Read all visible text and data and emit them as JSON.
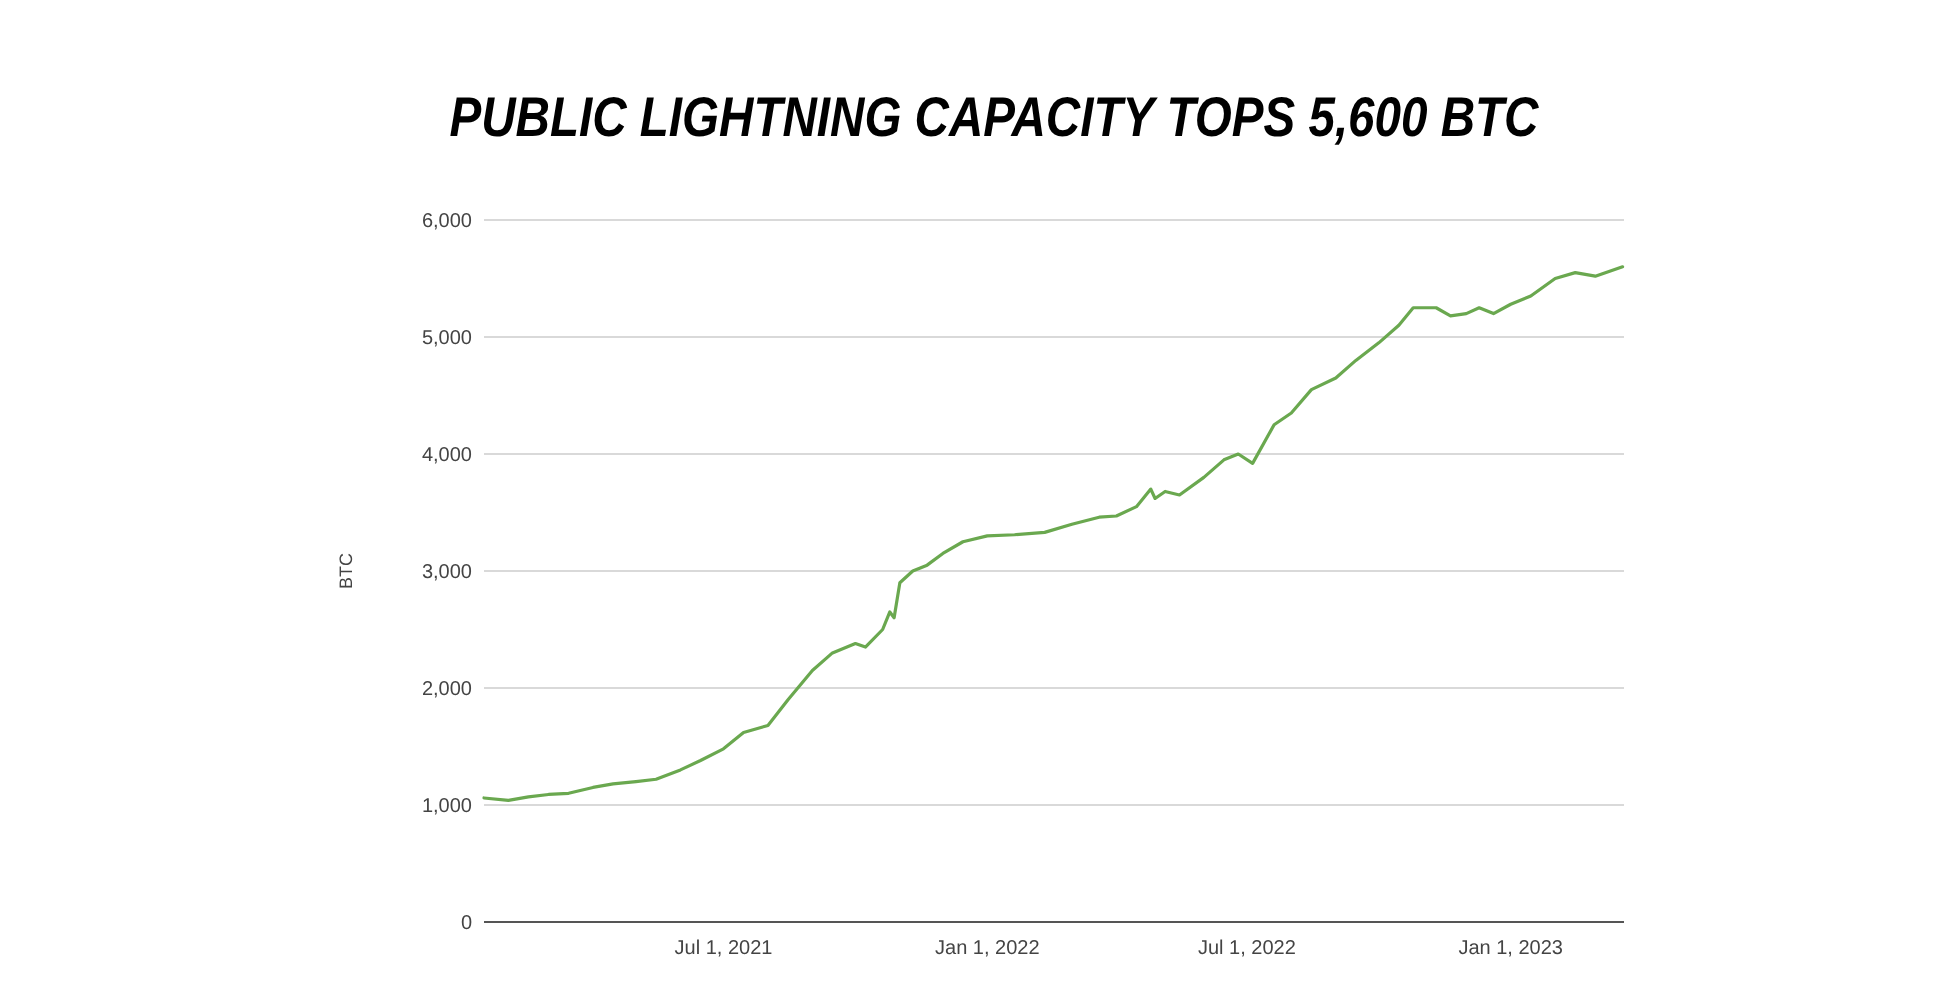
{
  "chart_data": {
    "type": "line",
    "title": "PUBLIC LIGHTNING CAPACITY TOPS 5,600 BTC",
    "ylabel": "BTC",
    "x": [
      "2021-01-15",
      "2021-02-01",
      "2021-02-15",
      "2021-03-01",
      "2021-03-15",
      "2021-04-01",
      "2021-04-15",
      "2021-05-01",
      "2021-05-15",
      "2021-06-01",
      "2021-06-15",
      "2021-07-01",
      "2021-07-15",
      "2021-08-01",
      "2021-08-15",
      "2021-09-01",
      "2021-09-15",
      "2021-10-01",
      "2021-10-08",
      "2021-10-20",
      "2021-10-25",
      "2021-10-28",
      "2021-11-01",
      "2021-11-10",
      "2021-11-20",
      "2021-12-01",
      "2021-12-15",
      "2022-01-01",
      "2022-01-20",
      "2022-02-10",
      "2022-03-01",
      "2022-03-20",
      "2022-04-01",
      "2022-04-15",
      "2022-04-25",
      "2022-04-28",
      "2022-05-05",
      "2022-05-15",
      "2022-06-01",
      "2022-06-15",
      "2022-06-25",
      "2022-07-05",
      "2022-07-20",
      "2022-08-01",
      "2022-08-15",
      "2022-09-01",
      "2022-09-15",
      "2022-10-01",
      "2022-10-15",
      "2022-10-25",
      "2022-11-10",
      "2022-11-20",
      "2022-12-01",
      "2022-12-10",
      "2022-12-20",
      "2023-01-01",
      "2023-01-15",
      "2023-02-01",
      "2023-02-15",
      "2023-03-01",
      "2023-03-20"
    ],
    "series": [
      {
        "color": "#6aa84f",
        "values": [
          1060,
          1040,
          1070,
          1090,
          1100,
          1150,
          1180,
          1200,
          1220,
          1300,
          1380,
          1480,
          1620,
          1680,
          1900,
          2150,
          2300,
          2380,
          2350,
          2500,
          2650,
          2600,
          2900,
          3000,
          3050,
          3150,
          3250,
          3300,
          3310,
          3330,
          3400,
          3460,
          3470,
          3550,
          3700,
          3620,
          3680,
          3650,
          3800,
          3950,
          4000,
          3920,
          4250,
          4350,
          4550,
          4650,
          4800,
          4950,
          5100,
          5250,
          5250,
          5180,
          5200,
          5250,
          5200,
          5280,
          5350,
          5500,
          5550,
          5520,
          5600
        ]
      }
    ],
    "xlim": [
      "2021-01-15",
      "2023-03-21"
    ],
    "xticks": [
      {
        "value": "2021-07-01",
        "label": "Jul 1, 2021"
      },
      {
        "value": "2022-01-01",
        "label": "Jan 1, 2022"
      },
      {
        "value": "2022-07-01",
        "label": "Jul 1, 2022"
      },
      {
        "value": "2023-01-01",
        "label": "Jan 1, 2023"
      }
    ],
    "ylim": [
      0,
      6000
    ],
    "yticks": [
      {
        "value": 0,
        "label": "0"
      },
      {
        "value": 1000,
        "label": "1,000"
      },
      {
        "value": 2000,
        "label": "2,000"
      },
      {
        "value": 3000,
        "label": "3,000"
      },
      {
        "value": 4000,
        "label": "4,000"
      },
      {
        "value": 5000,
        "label": "5,000"
      },
      {
        "value": 6000,
        "label": "6,000"
      }
    ],
    "grid": "y",
    "marker": "none",
    "line_style": "solid"
  }
}
